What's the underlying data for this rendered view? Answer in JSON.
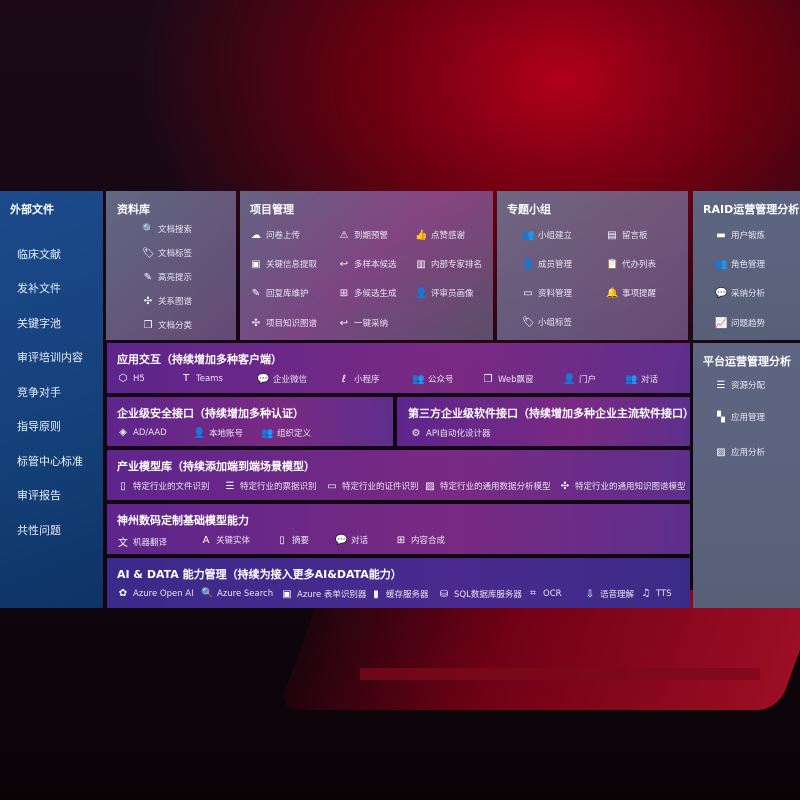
{
  "external": {
    "title": "外部文件",
    "items": [
      "临床文献",
      "发补文件",
      "关键字池",
      "审评培训内容",
      "竞争对手",
      "指导原则",
      "标管中心标准",
      "审评报告",
      "共性问题"
    ]
  },
  "library": {
    "title": "资料库",
    "items": [
      {
        "icon": "doc-search-icon",
        "g": "🔍",
        "label": "文档搜索"
      },
      {
        "icon": "tag-icon",
        "g": "🏷",
        "label": "文档标签"
      },
      {
        "icon": "pen-icon",
        "g": "✎",
        "label": "高亮提示"
      },
      {
        "icon": "graph-icon",
        "g": "✣",
        "label": "关系图谱"
      },
      {
        "icon": "doc-classify-icon",
        "g": "❐",
        "label": "文档分类"
      }
    ]
  },
  "project": {
    "title": "项目管理",
    "items": [
      {
        "icon": "upload-cloud-icon",
        "g": "☁",
        "label": "问卷上传"
      },
      {
        "icon": "alarm-icon",
        "g": "⚠",
        "label": "到期预警"
      },
      {
        "icon": "thumbs-up-icon",
        "g": "👍",
        "label": "点赞感谢"
      },
      {
        "icon": "extract-icon",
        "g": "▣",
        "label": "关键信息提取"
      },
      {
        "icon": "reply-icon",
        "g": "↩",
        "label": "多样本候选"
      },
      {
        "icon": "rank-icon",
        "g": "▥",
        "label": "内部专家排名"
      },
      {
        "icon": "edit-icon",
        "g": "✎",
        "label": "回复库维护"
      },
      {
        "icon": "puzzle-icon",
        "g": "⊞",
        "label": "多候选生成"
      },
      {
        "icon": "user-icon",
        "g": "👤",
        "label": "评审员画像"
      },
      {
        "icon": "knowledge-graph-icon",
        "g": "✣",
        "label": "项目知识图谱"
      },
      {
        "icon": "reply-icon",
        "g": "↩",
        "label": "一键采纳"
      }
    ]
  },
  "group": {
    "title": "专题小组",
    "items": [
      {
        "icon": "group-icon",
        "g": "👥",
        "label": "小组建立"
      },
      {
        "icon": "bbs-icon",
        "g": "▤",
        "label": "留言板"
      },
      {
        "icon": "add-user-icon",
        "g": "👤",
        "label": "成员管理"
      },
      {
        "icon": "clipboard-icon",
        "g": "📋",
        "label": "代办列表"
      },
      {
        "icon": "folder-icon",
        "g": "▭",
        "label": "资料管理"
      },
      {
        "icon": "bell-icon",
        "g": "🔔",
        "label": "事项提醒"
      },
      {
        "icon": "tag-icon",
        "g": "🏷",
        "label": "小组标签"
      }
    ]
  },
  "raid": {
    "title": "RAID运营管理分析",
    "items": [
      {
        "icon": "id-card-icon",
        "g": "▬",
        "label": "用户锻炼"
      },
      {
        "icon": "users-icon",
        "g": "👥",
        "label": "角色管理"
      },
      {
        "icon": "qa-icon",
        "g": "💬",
        "label": "采纳分析"
      },
      {
        "icon": "trend-icon",
        "g": "📈",
        "label": "问题趋势"
      }
    ]
  },
  "platform": {
    "title": "平台运营管理分析",
    "items": [
      {
        "icon": "list-icon",
        "g": "☰",
        "label": "资源分配"
      },
      {
        "icon": "apps-icon",
        "g": "▚",
        "label": "应用管理"
      },
      {
        "icon": "analysis-icon",
        "g": "▨",
        "label": "应用分析"
      }
    ]
  },
  "app": {
    "title": "应用交互（持续增加多种客户端）",
    "items": [
      {
        "icon": "html5-icon",
        "g": "⬡",
        "label": "H5"
      },
      {
        "icon": "teams-icon",
        "g": "T",
        "label": "Teams"
      },
      {
        "icon": "wecom-icon",
        "g": "💬",
        "label": "企业微信"
      },
      {
        "icon": "miniprogram-icon",
        "g": "ℓ",
        "label": "小程序"
      },
      {
        "icon": "official-account-icon",
        "g": "👥",
        "label": "公众号"
      },
      {
        "icon": "window-icon",
        "g": "❐",
        "label": "Web飘窗"
      },
      {
        "icon": "portal-icon",
        "g": "👤",
        "label": "门户"
      },
      {
        "icon": "chat-icon",
        "g": "👥",
        "label": "对话"
      }
    ]
  },
  "security": {
    "title": "企业级安全接口（持续增加多种认证）",
    "items": [
      {
        "icon": "ad-icon",
        "g": "◈",
        "label": "AD/AAD"
      },
      {
        "icon": "local-account-icon",
        "g": "👤",
        "label": "本地账号"
      },
      {
        "icon": "org-icon",
        "g": "👥",
        "label": "组织定义"
      }
    ]
  },
  "thirdparty": {
    "title": "第三方企业级软件接口（持续增加多种企业主流软件接口）",
    "items": [
      {
        "icon": "gear-icon",
        "g": "⚙",
        "label": "API自动化设计器"
      }
    ]
  },
  "industry": {
    "title": "产业模型库（持续添加端到端场景模型）",
    "items": [
      {
        "icon": "file-icon",
        "g": "▯",
        "label": "特定行业的文件识别"
      },
      {
        "icon": "receipt-icon",
        "g": "☰",
        "label": "特定行业的票据识别"
      },
      {
        "icon": "id-card-icon",
        "g": "▭",
        "label": "特定行业的证件识别"
      },
      {
        "icon": "chart-icon",
        "g": "▨",
        "label": "特定行业的通用数据分析模型"
      },
      {
        "icon": "network-icon",
        "g": "✣",
        "label": "特定行业的通用知识图谱模型"
      }
    ]
  },
  "base": {
    "title": "神州数码定制基础模型能力",
    "items": [
      {
        "icon": "translate-icon",
        "g": "文",
        "label": "机器翻译"
      },
      {
        "icon": "entity-icon",
        "g": "A",
        "label": "关键实体"
      },
      {
        "icon": "summary-icon",
        "g": "▯",
        "label": "摘要"
      },
      {
        "icon": "chat-bubble-icon",
        "g": "💬",
        "label": "对话"
      },
      {
        "icon": "compose-icon",
        "g": "⊞",
        "label": "内容合成"
      }
    ]
  },
  "ai": {
    "title": "AI & DATA 能力管理（持续为接入更多AI&DATA能力）",
    "items": [
      {
        "icon": "openai-icon",
        "g": "✿",
        "label": "Azure Open AI"
      },
      {
        "icon": "search-icon",
        "g": "🔍",
        "label": "Azure Search"
      },
      {
        "icon": "form-recognizer-icon",
        "g": "▣",
        "label": "Azure 表单识别器"
      },
      {
        "icon": "cache-icon",
        "g": "▮",
        "label": "缓存服务器"
      },
      {
        "icon": "sql-icon",
        "g": "⛁",
        "label": "SQL数据库服务器"
      },
      {
        "icon": "ocr-icon",
        "g": "⌗",
        "label": "OCR"
      },
      {
        "icon": "speech-icon",
        "g": "⇩",
        "label": "语音理解"
      },
      {
        "icon": "tts-icon",
        "g": "♫",
        "label": "TTS"
      }
    ]
  }
}
